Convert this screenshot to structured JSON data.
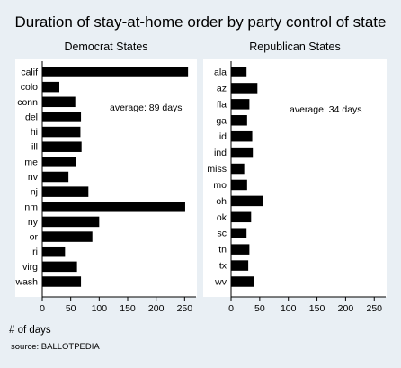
{
  "title": "Duration of stay-at-home order by party control of state",
  "xlabel": "# of days",
  "source_note": "source: BALLOTPEDIA",
  "colors": {
    "background": "#e9eff4",
    "plot_bg": "#ffffff",
    "bar": "#000000"
  },
  "chart_data": [
    {
      "type": "bar",
      "orientation": "horizontal",
      "title": "Democrat States",
      "categories": [
        "calif",
        "colo",
        "conn",
        "del",
        "hi",
        "ill",
        "me",
        "nv",
        "nj",
        "nm",
        "ny",
        "or",
        "ri",
        "virg",
        "wash"
      ],
      "values": [
        256,
        30,
        58,
        68,
        67,
        69,
        60,
        46,
        81,
        251,
        100,
        88,
        40,
        61,
        68
      ],
      "annotation": "average: 89 days",
      "xticks": [
        "0",
        "50",
        "100",
        "150",
        "200",
        "250"
      ],
      "xlim": [
        0,
        270
      ],
      "grid": false
    },
    {
      "type": "bar",
      "orientation": "horizontal",
      "title": "Republican States",
      "categories": [
        "ala",
        "az",
        "fla",
        "ga",
        "id",
        "ind",
        "miss",
        "mo",
        "oh",
        "ok",
        "sc",
        "tn",
        "tx",
        "wv"
      ],
      "values": [
        27,
        46,
        32,
        28,
        37,
        38,
        23,
        28,
        56,
        35,
        27,
        32,
        30,
        40
      ],
      "annotation": "average: 34 days",
      "xticks": [
        "0",
        "50",
        "100",
        "150",
        "200",
        "250"
      ],
      "xlim": [
        0,
        270
      ],
      "grid": false
    }
  ]
}
